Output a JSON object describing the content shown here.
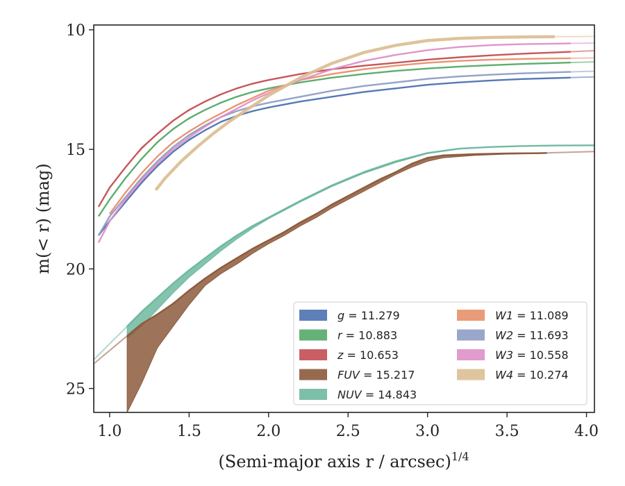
{
  "chart_data": {
    "type": "line",
    "xlabel": "(Semi-major axis r / arcsec)",
    "xlabel_sup": "1/4",
    "ylabel": "m(< r) (mag)",
    "xlim": [
      0.9,
      4.05
    ],
    "ylim": [
      26.0,
      9.8
    ],
    "y_inverted": true,
    "xticks": [
      1.0,
      1.5,
      2.0,
      2.5,
      3.0,
      3.5,
      4.0
    ],
    "xtick_labels": [
      "1.0",
      "1.5",
      "2.0",
      "2.5",
      "3.0",
      "3.5",
      "4.0"
    ],
    "yticks": [
      10,
      15,
      20,
      25
    ],
    "ytick_labels": [
      "10",
      "15",
      "20",
      "25"
    ],
    "grid": false,
    "legend_position": "lower-right",
    "legend": {
      "columns": [
        [
          {
            "var": "g",
            "value": "11.279",
            "color": "#4c72b0"
          },
          {
            "var": "r",
            "value": "10.883",
            "color": "#55a868"
          },
          {
            "var": "z",
            "value": "10.653",
            "color": "#c44e52"
          },
          {
            "var": "FUV",
            "value": "15.217",
            "color": "#8c5a3c"
          },
          {
            "var": "NUV",
            "value": "14.843",
            "color": "#6fb8a0"
          }
        ],
        [
          {
            "var": "W1",
            "value": "11.089",
            "color": "#e8906a"
          },
          {
            "var": "W2",
            "value": "11.693",
            "color": "#8f9dc4"
          },
          {
            "var": "W3",
            "value": "10.558",
            "color": "#de90c8"
          },
          {
            "var": "W4",
            "value": "10.274",
            "color": "#dcbf94"
          }
        ]
      ]
    },
    "series": [
      {
        "name": "g",
        "color": "#4c72b0",
        "extrap_to": 4.05,
        "x": [
          0.93,
          1.0,
          1.1,
          1.2,
          1.3,
          1.4,
          1.5,
          1.6,
          1.7,
          1.8,
          1.9,
          2.0,
          2.2,
          2.4,
          2.6,
          2.8,
          3.0,
          3.2,
          3.4,
          3.6,
          3.8,
          3.9
        ],
        "y": [
          18.6,
          18.0,
          17.2,
          16.4,
          15.7,
          15.1,
          14.6,
          14.2,
          13.85,
          13.6,
          13.4,
          13.25,
          13.0,
          12.8,
          12.6,
          12.45,
          12.3,
          12.2,
          12.12,
          12.06,
          12.02,
          12.0
        ]
      },
      {
        "name": "r",
        "color": "#55a868",
        "extrap_to": 4.05,
        "x": [
          0.93,
          1.0,
          1.1,
          1.2,
          1.3,
          1.4,
          1.5,
          1.6,
          1.7,
          1.8,
          1.9,
          2.0,
          2.2,
          2.4,
          2.6,
          2.8,
          3.0,
          3.2,
          3.4,
          3.6,
          3.8,
          3.9
        ],
        "y": [
          17.8,
          17.1,
          16.2,
          15.4,
          14.7,
          14.15,
          13.7,
          13.35,
          13.05,
          12.8,
          12.6,
          12.45,
          12.2,
          12.0,
          11.85,
          11.72,
          11.62,
          11.54,
          11.48,
          11.43,
          11.39,
          11.37
        ]
      },
      {
        "name": "z",
        "color": "#c44e52",
        "extrap_to": 4.05,
        "x": [
          0.93,
          1.0,
          1.1,
          1.2,
          1.3,
          1.4,
          1.5,
          1.6,
          1.7,
          1.8,
          1.9,
          2.0,
          2.2,
          2.4,
          2.6,
          2.8,
          3.0,
          3.2,
          3.4,
          3.6,
          3.8,
          3.9
        ],
        "y": [
          17.4,
          16.6,
          15.75,
          14.95,
          14.35,
          13.8,
          13.35,
          13.0,
          12.7,
          12.45,
          12.25,
          12.1,
          11.85,
          11.65,
          11.5,
          11.38,
          11.25,
          11.15,
          11.07,
          11.0,
          10.95,
          10.92
        ]
      },
      {
        "name": "W1",
        "color": "#e8906a",
        "extrap_to": 4.05,
        "x": [
          1.0,
          1.1,
          1.2,
          1.3,
          1.4,
          1.5,
          1.6,
          1.7,
          1.8,
          1.9,
          2.0,
          2.2,
          2.4,
          2.6,
          2.8,
          3.0,
          3.2,
          3.4,
          3.6,
          3.8,
          3.9
        ],
        "y": [
          17.7,
          16.8,
          16.0,
          15.3,
          14.7,
          14.25,
          13.85,
          13.5,
          13.15,
          12.85,
          12.55,
          12.1,
          11.85,
          11.65,
          11.5,
          11.38,
          11.3,
          11.25,
          11.22,
          11.2,
          11.19
        ]
      },
      {
        "name": "W2",
        "color": "#8f9dc4",
        "extrap_to": 4.05,
        "x": [
          0.93,
          1.0,
          1.1,
          1.2,
          1.3,
          1.4,
          1.5,
          1.6,
          1.7,
          1.8,
          1.9,
          2.0,
          2.2,
          2.4,
          2.6,
          2.8,
          3.0,
          3.2,
          3.4,
          3.6,
          3.8,
          3.9
        ],
        "y": [
          18.6,
          17.8,
          17.0,
          16.2,
          15.5,
          14.9,
          14.4,
          14.0,
          13.65,
          13.4,
          13.2,
          13.05,
          12.8,
          12.55,
          12.35,
          12.2,
          12.05,
          11.95,
          11.88,
          11.82,
          11.78,
          11.76
        ]
      },
      {
        "name": "W3",
        "color": "#de90c8",
        "extrap_to": 4.05,
        "x": [
          0.93,
          1.0,
          1.1,
          1.2,
          1.3,
          1.4,
          1.5,
          1.6,
          1.7,
          1.8,
          1.9,
          2.0,
          2.2,
          2.4,
          2.6,
          2.8,
          3.0,
          3.2,
          3.4,
          3.6,
          3.8,
          3.9
        ],
        "y": [
          18.9,
          18.0,
          17.1,
          16.3,
          15.6,
          15.0,
          14.5,
          14.05,
          13.65,
          13.3,
          12.95,
          12.65,
          12.1,
          11.65,
          11.3,
          11.05,
          10.85,
          10.72,
          10.64,
          10.6,
          10.58,
          10.57
        ]
      },
      {
        "name": "W4",
        "color": "#dcbf94",
        "width": 4.5,
        "extrap_to": 4.05,
        "x": [
          1.29,
          1.35,
          1.45,
          1.55,
          1.65,
          1.75,
          1.85,
          2.0,
          2.2,
          2.4,
          2.6,
          2.8,
          3.0,
          3.2,
          3.4,
          3.6,
          3.8
        ],
        "y": [
          16.7,
          16.2,
          15.5,
          14.9,
          14.35,
          13.85,
          13.4,
          12.75,
          12.0,
          11.4,
          10.95,
          10.65,
          10.45,
          10.36,
          10.32,
          10.3,
          10.29
        ]
      },
      {
        "name": "NUV",
        "color": "#6fb8a0",
        "extrap_from": 0.9,
        "extrap_to": 4.05,
        "x": [
          1.11,
          1.2,
          1.3,
          1.4,
          1.5,
          1.6,
          1.7,
          1.8,
          1.9,
          2.0,
          2.2,
          2.4,
          2.6,
          2.8,
          3.0,
          3.2,
          3.4,
          3.6,
          3.8,
          4.05
        ],
        "y": [
          22.4,
          21.8,
          21.2,
          20.6,
          20.05,
          19.55,
          19.05,
          18.6,
          18.2,
          17.85,
          17.15,
          16.5,
          15.95,
          15.5,
          15.15,
          14.97,
          14.9,
          14.86,
          14.84,
          14.83
        ],
        "lower": [
          22.9,
          22.4,
          21.7,
          21.0,
          20.35,
          19.8,
          19.25,
          18.75,
          18.3,
          17.9,
          17.2,
          16.55,
          16.0,
          15.55,
          15.18,
          14.99,
          14.91,
          14.87,
          14.85,
          14.84
        ]
      },
      {
        "name": "FUV",
        "color": "#8c5a3c",
        "extrap_from": 0.9,
        "extrap_to": 4.05,
        "x": [
          1.11,
          1.2,
          1.3,
          1.4,
          1.5,
          1.6,
          1.7,
          1.8,
          1.9,
          2.0,
          2.1,
          2.2,
          2.3,
          2.4,
          2.5,
          2.6,
          2.7,
          2.8,
          2.9,
          3.0,
          3.1,
          3.3,
          3.5,
          3.7,
          3.75
        ],
        "y": [
          22.8,
          22.3,
          21.9,
          21.45,
          20.9,
          20.4,
          19.95,
          19.55,
          19.15,
          18.8,
          18.45,
          18.05,
          17.7,
          17.3,
          16.95,
          16.6,
          16.25,
          15.95,
          15.6,
          15.35,
          15.25,
          15.2,
          15.17,
          15.16,
          15.15
        ],
        "lower": [
          26.0,
          24.8,
          23.3,
          22.4,
          21.5,
          20.7,
          20.2,
          19.8,
          19.35,
          18.95,
          18.6,
          18.2,
          17.85,
          17.45,
          17.1,
          16.75,
          16.4,
          16.05,
          15.75,
          15.5,
          15.35,
          15.25,
          15.2,
          15.18,
          15.17
        ]
      }
    ]
  }
}
